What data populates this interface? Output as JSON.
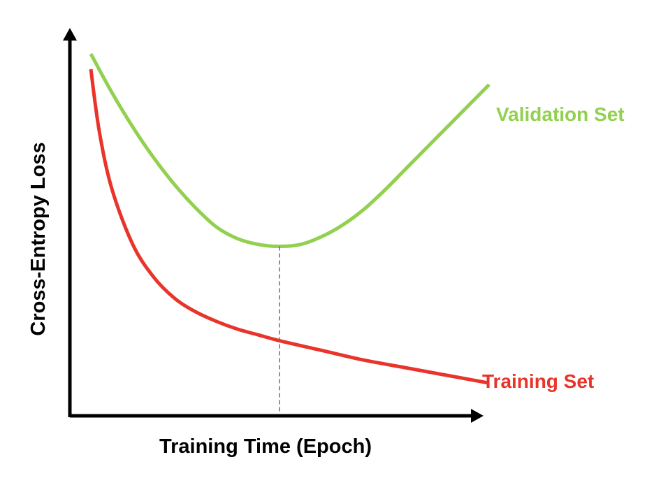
{
  "chart_data": {
    "type": "line",
    "title": "",
    "xlabel": "Training Time (Epoch)",
    "ylabel": "Cross-Entropy Loss",
    "xlim": [
      0,
      10
    ],
    "ylim": [
      0,
      10
    ],
    "ticks_shown": false,
    "grid": false,
    "series": [
      {
        "name": "Validation Set",
        "color": "#92d050",
        "x": [
          0.5,
          1.0,
          1.5,
          2.0,
          2.5,
          3.0,
          3.5,
          4.0,
          4.5,
          5.0,
          5.5,
          6.0,
          6.5,
          7.0,
          7.5,
          8.0,
          8.5,
          9.0,
          9.5,
          10.0
        ],
        "values": [
          9.4,
          8.4,
          7.5,
          6.7,
          6.0,
          5.4,
          4.9,
          4.6,
          4.45,
          4.4,
          4.45,
          4.65,
          4.95,
          5.35,
          5.85,
          6.4,
          6.95,
          7.5,
          8.05,
          8.6
        ]
      },
      {
        "name": "Training Set",
        "color": "#e8342a",
        "x": [
          0.5,
          0.7,
          1.0,
          1.5,
          2.0,
          2.5,
          3.0,
          3.5,
          4.0,
          4.5,
          5.0,
          6.0,
          7.0,
          8.0,
          9.0,
          10.0
        ],
        "values": [
          9.0,
          7.4,
          5.9,
          4.45,
          3.6,
          3.05,
          2.7,
          2.45,
          2.25,
          2.1,
          1.95,
          1.7,
          1.45,
          1.25,
          1.05,
          0.85
        ]
      }
    ],
    "annotations": [
      {
        "type": "vertical-dashed-line",
        "x": 5.0,
        "color": "#4472c4"
      }
    ],
    "legend_placement": "inline-right"
  }
}
